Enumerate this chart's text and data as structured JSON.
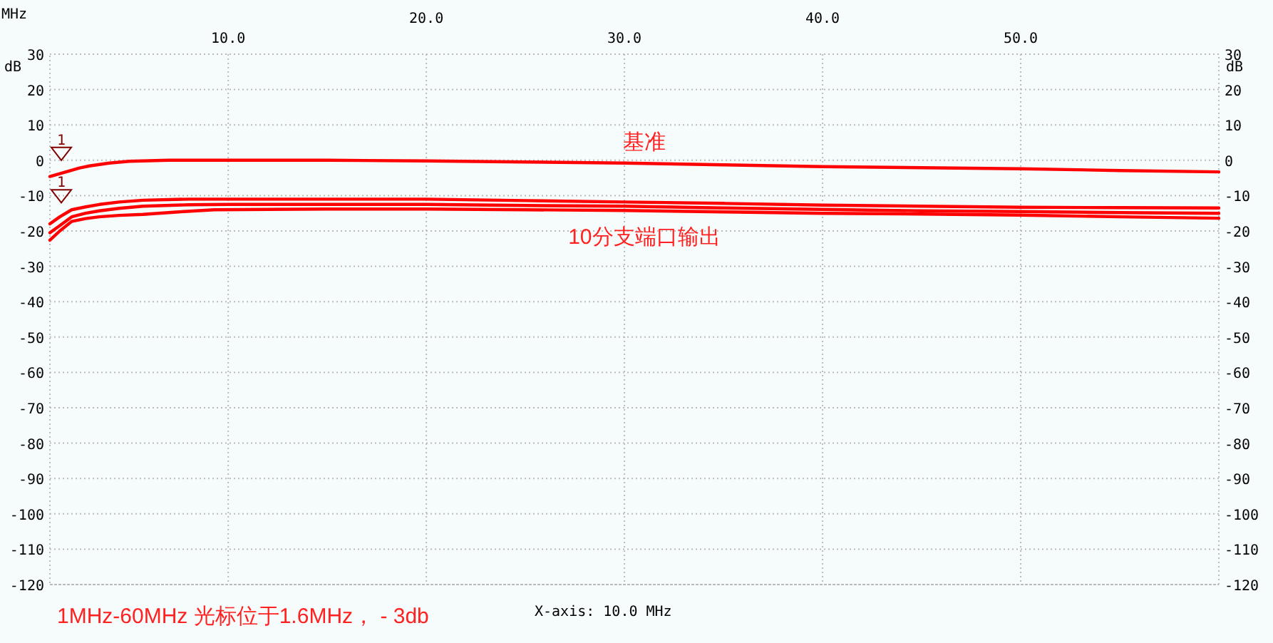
{
  "chart_data": {
    "type": "line",
    "xlabel": "MHz",
    "ylabel": "dB",
    "y2label": "dB",
    "xlim": [
      1,
      60
    ],
    "xticks": [
      {
        "value": 10,
        "label": "10.0"
      },
      {
        "value": 30,
        "label": "30.0"
      },
      {
        "value": 50,
        "label": "50.0"
      }
    ],
    "x2lim": [
      1,
      60
    ],
    "x2ticks": [
      {
        "value": 20,
        "label": "20.0"
      },
      {
        "value": 40,
        "label": "40.0"
      }
    ],
    "ylim": [
      -120,
      30
    ],
    "yticks": [
      -120,
      -110,
      -100,
      -90,
      -80,
      -70,
      -60,
      -50,
      -40,
      -30,
      -20,
      -10,
      0,
      10,
      20,
      30
    ],
    "y2lim": [
      -120,
      30
    ],
    "y2ticks": [
      -120,
      -110,
      -100,
      -90,
      -80,
      -70,
      -60,
      -50,
      -40,
      -30,
      -20,
      -10,
      0,
      10,
      20,
      30
    ],
    "grid": true,
    "line_style": "solid",
    "marker": "none",
    "series": [
      {
        "color": "#ff0000",
        "x": [
          1,
          1.5,
          2,
          2.5,
          3,
          4,
          5,
          7,
          10,
          15,
          20,
          25,
          30,
          35,
          40,
          45,
          50,
          55,
          60
        ],
        "values": [
          -4.6,
          -3.8,
          -3,
          -2.2,
          -1.6,
          -0.8,
          -0.3,
          0,
          0,
          0,
          -0.2,
          -0.5,
          -0.8,
          -1.3,
          -1.8,
          -2.1,
          -2.4,
          -2.9,
          -3.3
        ]
      },
      {
        "color": "#ff0000",
        "x": [
          1,
          1.5,
          2.1,
          2.8,
          3.5,
          4.5,
          5.7,
          8,
          10,
          15,
          20,
          25,
          30,
          35,
          40,
          45,
          50,
          55,
          60
        ],
        "values": [
          -18,
          -16,
          -14,
          -13.2,
          -12.5,
          -11.8,
          -11.3,
          -11,
          -11,
          -11,
          -11,
          -11.4,
          -11.8,
          -12.2,
          -12.7,
          -13,
          -13.3,
          -13.4,
          -13.5
        ]
      },
      {
        "color": "#ff0000",
        "x": [
          1,
          1.5,
          2.1,
          2.8,
          3.5,
          4.5,
          5.7,
          8,
          10,
          15,
          20,
          25,
          30,
          35,
          40,
          45,
          50,
          55,
          60
        ],
        "values": [
          -20.5,
          -18.5,
          -16,
          -15,
          -14.3,
          -13.6,
          -13,
          -12.6,
          -12.5,
          -12.5,
          -12.5,
          -12.8,
          -13,
          -13.5,
          -13.9,
          -14.3,
          -14.5,
          -14.8,
          -15
        ]
      },
      {
        "color": "#ff0000",
        "x": [
          1,
          1.5,
          2.1,
          2.8,
          3.5,
          4.5,
          5.7,
          7.5,
          9.3,
          12,
          15,
          20,
          25,
          30,
          35,
          40,
          45,
          50,
          55,
          60
        ],
        "values": [
          -22.6,
          -20,
          -17.3,
          -16.5,
          -16,
          -15.6,
          -15.3,
          -14.6,
          -14,
          -13.9,
          -13.8,
          -13.8,
          -14,
          -14.2,
          -14.6,
          -15,
          -15.2,
          -15.5,
          -16,
          -16.4
        ]
      }
    ],
    "annotations": [
      {
        "text": "基准",
        "x": 31,
        "y": 0
      },
      {
        "text": "10分支端口输出",
        "x": 31,
        "y": -14
      },
      "1",
      "1",
      "1MHz-60MHz   光标位于1.6MHz， - 3db",
      "X-axis: 10.0 MHz"
    ]
  }
}
